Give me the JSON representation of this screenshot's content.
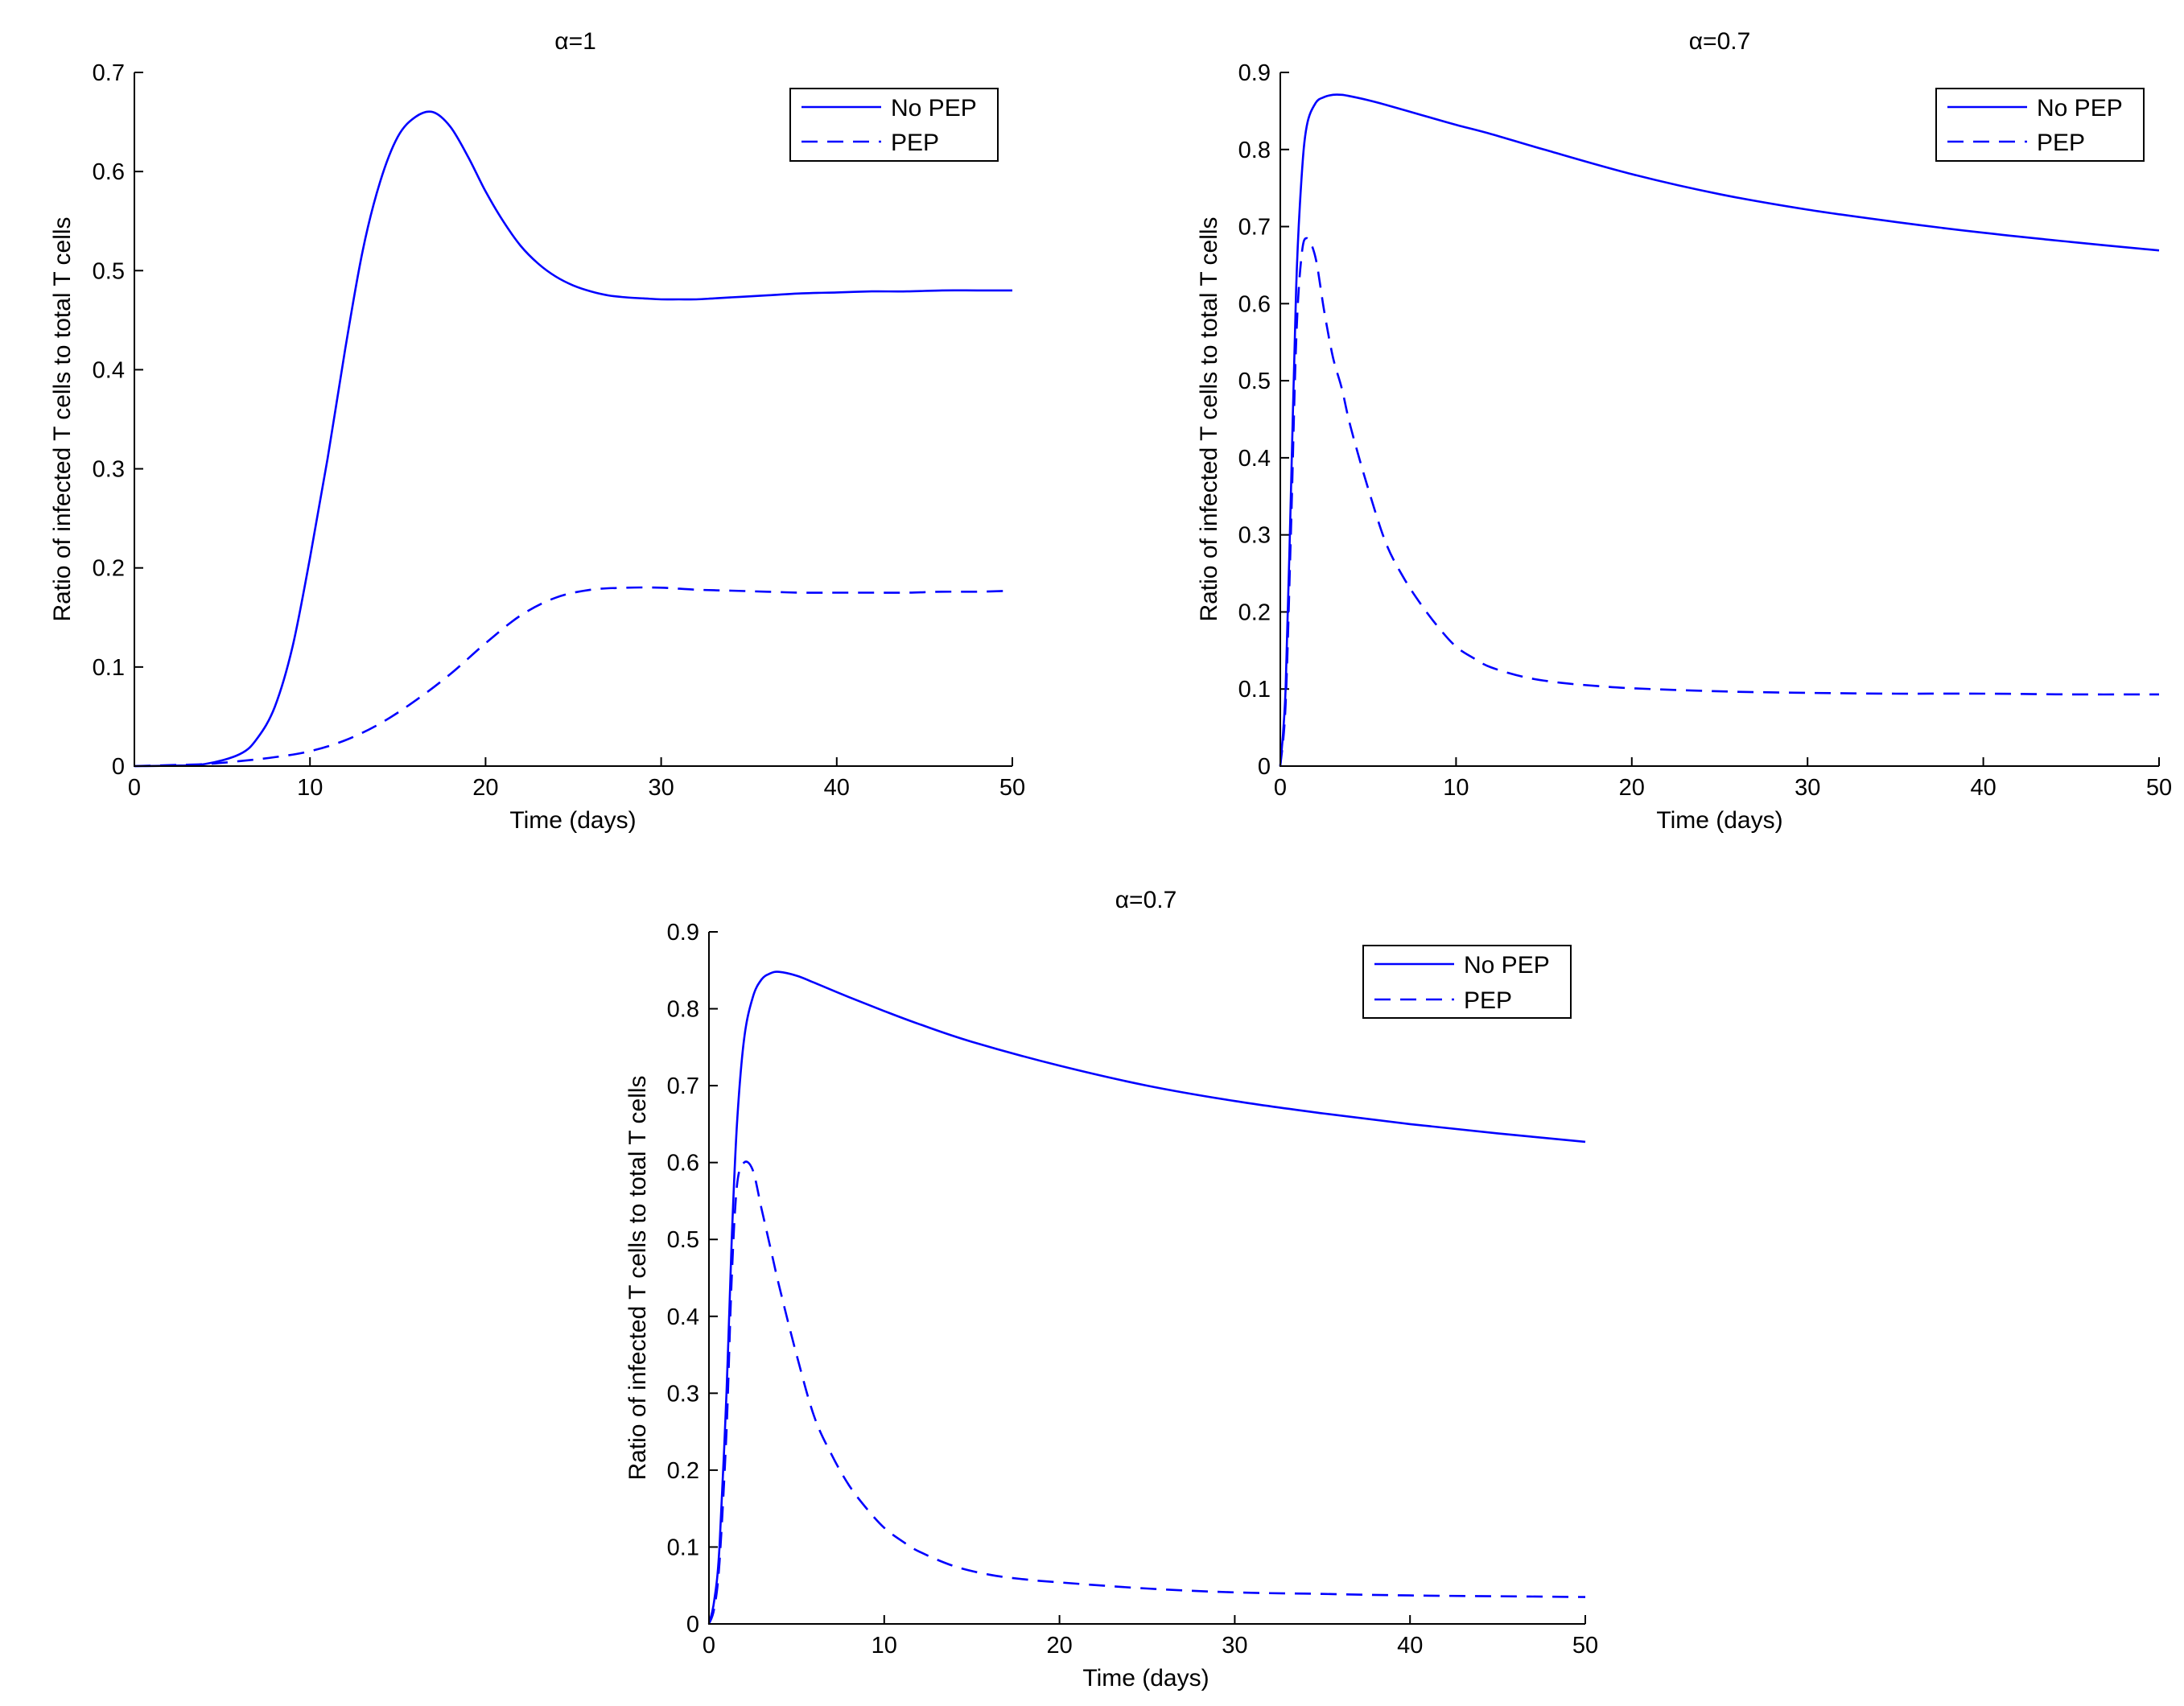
{
  "colors": {
    "series": "#0000ff",
    "axis": "#000000",
    "background": "#ffffff"
  },
  "chart_data": [
    {
      "type": "line",
      "title": "α=1",
      "xlabel": "Time (days)",
      "ylabel": "Ratio of infected T cells to total T cells",
      "xlim": [
        0,
        50
      ],
      "ylim": [
        0,
        0.7
      ],
      "xticks": [
        0,
        10,
        20,
        30,
        40,
        50
      ],
      "xtick_labels": [
        "0",
        "10",
        "20",
        "30",
        "40",
        "50"
      ],
      "yticks": [
        0,
        0.1,
        0.2,
        0.3,
        0.4,
        0.5,
        0.6,
        0.7
      ],
      "ytick_labels": [
        "0",
        "0.1",
        "0.2",
        "0.3",
        "0.4",
        "0.5",
        "0.6",
        "0.7"
      ],
      "grid": false,
      "legend": "top-right",
      "series": [
        {
          "name": "No PEP",
          "style": "solid",
          "color": "#0000ff",
          "x": [
            0,
            2,
            4,
            6,
            7,
            8,
            9,
            10,
            11,
            12,
            13,
            14,
            15,
            16,
            17,
            18,
            19,
            20,
            21,
            22,
            23,
            24,
            25,
            26,
            27,
            28,
            29,
            30,
            31,
            32,
            33,
            34,
            35,
            36,
            38,
            40,
            42,
            44,
            46,
            48,
            50
          ],
          "y": [
            0,
            0.0005,
            0.002,
            0.012,
            0.028,
            0.06,
            0.12,
            0.21,
            0.31,
            0.42,
            0.52,
            0.59,
            0.635,
            0.655,
            0.66,
            0.645,
            0.615,
            0.58,
            0.55,
            0.525,
            0.507,
            0.494,
            0.485,
            0.479,
            0.475,
            0.473,
            0.472,
            0.471,
            0.471,
            0.471,
            0.472,
            0.473,
            0.474,
            0.475,
            0.477,
            0.478,
            0.479,
            0.479,
            0.48,
            0.48,
            0.48
          ]
        },
        {
          "name": "PEP",
          "style": "dashed",
          "color": "#0000ff",
          "x": [
            0,
            2,
            4,
            6,
            8,
            10,
            12,
            14,
            16,
            18,
            20,
            22,
            24,
            26,
            28,
            30,
            32,
            34,
            36,
            38,
            40,
            42,
            44,
            46,
            48,
            50
          ],
          "y": [
            0,
            0.001,
            0.002,
            0.005,
            0.009,
            0.015,
            0.026,
            0.043,
            0.066,
            0.093,
            0.124,
            0.152,
            0.17,
            0.178,
            0.18,
            0.18,
            0.178,
            0.177,
            0.176,
            0.175,
            0.175,
            0.175,
            0.175,
            0.176,
            0.176,
            0.177
          ]
        }
      ]
    },
    {
      "type": "line",
      "title": "α=0.7",
      "xlabel": "Time (days)",
      "ylabel": "Ratio of infected T cells to total T cells",
      "xlim": [
        0,
        50
      ],
      "ylim": [
        0,
        0.9
      ],
      "xticks": [
        0,
        10,
        20,
        30,
        40,
        50
      ],
      "xtick_labels": [
        "0",
        "10",
        "20",
        "30",
        "40",
        "50"
      ],
      "yticks": [
        0,
        0.1,
        0.2,
        0.3,
        0.4,
        0.5,
        0.6,
        0.7,
        0.8,
        0.9
      ],
      "ytick_labels": [
        "0",
        "0.1",
        "0.2",
        "0.3",
        "0.4",
        "0.5",
        "0.6",
        "0.7",
        "0.8",
        "0.9"
      ],
      "grid": false,
      "legend": "top-right",
      "series": [
        {
          "name": "No PEP",
          "style": "solid",
          "color": "#0000ff",
          "x": [
            0,
            0.3,
            0.6,
            0.9,
            1.2,
            1.5,
            2,
            2.5,
            3,
            3.5,
            4,
            5,
            6,
            8,
            10,
            12,
            15,
            20,
            25,
            30,
            35,
            40,
            45,
            50
          ],
          "y": [
            0,
            0.1,
            0.35,
            0.62,
            0.76,
            0.83,
            0.86,
            0.868,
            0.871,
            0.871,
            0.869,
            0.864,
            0.858,
            0.845,
            0.832,
            0.82,
            0.8,
            0.768,
            0.742,
            0.722,
            0.706,
            0.692,
            0.68,
            0.669
          ]
        },
        {
          "name": "PEP",
          "style": "dashed",
          "color": "#0000ff",
          "x": [
            0,
            0.3,
            0.6,
            0.9,
            1.2,
            1.5,
            2,
            2.5,
            3,
            3.5,
            4,
            5,
            6,
            7,
            8,
            9,
            10,
            11,
            12,
            14,
            16,
            18,
            20,
            25,
            30,
            35,
            40,
            45,
            50
          ],
          "y": [
            0,
            0.08,
            0.3,
            0.55,
            0.66,
            0.685,
            0.66,
            0.59,
            0.53,
            0.49,
            0.44,
            0.36,
            0.29,
            0.245,
            0.21,
            0.18,
            0.155,
            0.14,
            0.128,
            0.115,
            0.108,
            0.104,
            0.101,
            0.097,
            0.095,
            0.094,
            0.094,
            0.093,
            0.093
          ]
        }
      ]
    },
    {
      "type": "line",
      "title": "α=0.7",
      "xlabel": "Time (days)",
      "ylabel": "Ratio of infected T cells to total T cells",
      "xlim": [
        0,
        50
      ],
      "ylim": [
        0,
        0.9
      ],
      "xticks": [
        0,
        10,
        20,
        30,
        40,
        50
      ],
      "xtick_labels": [
        "0",
        "10",
        "20",
        "30",
        "40",
        "50"
      ],
      "yticks": [
        0,
        0.1,
        0.2,
        0.3,
        0.4,
        0.5,
        0.6,
        0.7,
        0.8,
        0.9
      ],
      "ytick_labels": [
        "0",
        "0.1",
        "0.2",
        "0.3",
        "0.4",
        "0.5",
        "0.6",
        "0.7",
        "0.8",
        "0.9"
      ],
      "grid": false,
      "legend": "top-right",
      "series": [
        {
          "name": "No PEP",
          "style": "solid",
          "color": "#0000ff",
          "x": [
            0,
            0.3,
            0.6,
            1,
            1.3,
            1.6,
            2,
            2.5,
            3,
            3.5,
            4,
            5,
            6,
            8,
            10,
            12,
            15,
            20,
            25,
            30,
            35,
            40,
            45,
            50
          ],
          "y": [
            0,
            0.03,
            0.1,
            0.3,
            0.5,
            0.65,
            0.76,
            0.815,
            0.838,
            0.846,
            0.848,
            0.843,
            0.834,
            0.815,
            0.797,
            0.78,
            0.757,
            0.726,
            0.7,
            0.68,
            0.664,
            0.65,
            0.638,
            0.627
          ]
        },
        {
          "name": "PEP",
          "style": "dashed",
          "color": "#0000ff",
          "x": [
            0,
            0.3,
            0.6,
            1,
            1.3,
            1.6,
            2,
            2.5,
            3,
            3.5,
            4,
            5,
            6,
            7,
            8,
            9,
            10,
            11,
            12,
            14,
            16,
            18,
            20,
            25,
            30,
            35,
            40,
            45,
            50
          ],
          "y": [
            0,
            0.02,
            0.08,
            0.25,
            0.45,
            0.57,
            0.6,
            0.59,
            0.54,
            0.49,
            0.44,
            0.35,
            0.27,
            0.22,
            0.18,
            0.15,
            0.125,
            0.108,
            0.094,
            0.075,
            0.064,
            0.058,
            0.054,
            0.046,
            0.041,
            0.039,
            0.037,
            0.036,
            0.035
          ]
        }
      ]
    }
  ]
}
